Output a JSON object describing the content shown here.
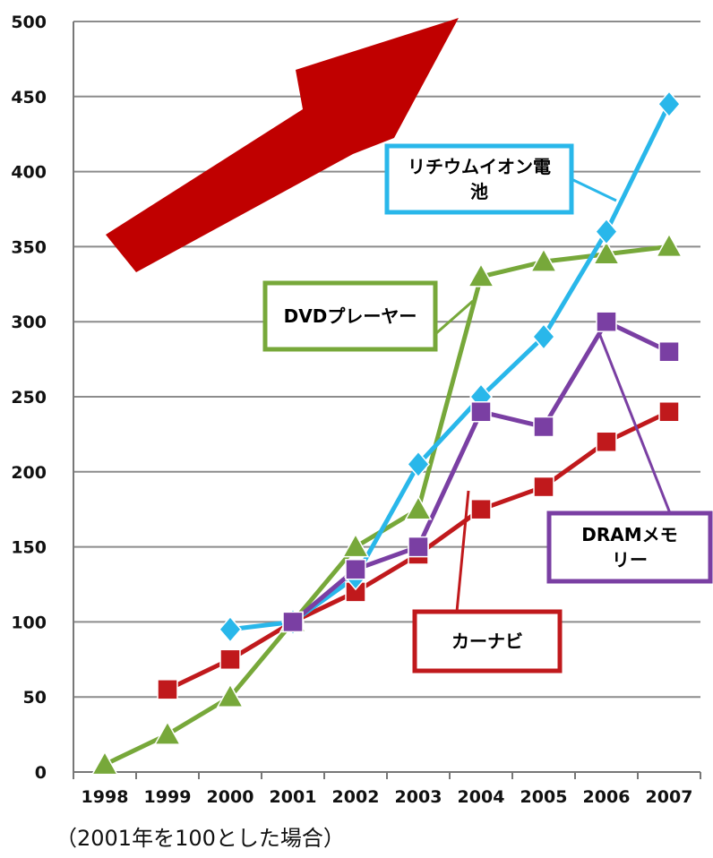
{
  "chart_data": {
    "type": "line",
    "categories": [
      "1998",
      "1999",
      "2000",
      "2001",
      "2002",
      "2003",
      "2004",
      "2005",
      "2006",
      "2007"
    ],
    "ylim": [
      0,
      500
    ],
    "yticks": [
      0,
      50,
      100,
      150,
      200,
      250,
      300,
      350,
      400,
      450,
      500
    ],
    "grid": true,
    "note": "（2001年を100とした場合）",
    "series": [
      {
        "name": "カーナビ",
        "color": "#c0191c",
        "marker": "square",
        "values": [
          null,
          55,
          75,
          100,
          120,
          145,
          175,
          190,
          220,
          240
        ]
      },
      {
        "name": "DVDプレーヤー",
        "color": "#77a83a",
        "marker": "triangle",
        "values": [
          5,
          25,
          50,
          100,
          150,
          175,
          330,
          340,
          345,
          350
        ]
      },
      {
        "name": "リチウムイオン電池",
        "color": "#29b7ea",
        "marker": "diamond",
        "values": [
          null,
          null,
          95,
          100,
          130,
          205,
          250,
          290,
          360,
          445
        ]
      },
      {
        "name": "DRAMメモリー",
        "color": "#7a3fa3",
        "marker": "square",
        "values": [
          null,
          null,
          null,
          100,
          135,
          150,
          240,
          230,
          300,
          280
        ]
      }
    ],
    "callouts": [
      {
        "series": 0,
        "lines": [
          "カーナビ"
        ]
      },
      {
        "series": 1,
        "lines": [
          "DVDプレーヤー"
        ]
      },
      {
        "series": 2,
        "lines": [
          "リチウムイオン電",
          "池"
        ]
      },
      {
        "series": 3,
        "lines": [
          "DRAMメモ",
          "リー"
        ]
      }
    ],
    "arrow_color": "#c00000"
  }
}
